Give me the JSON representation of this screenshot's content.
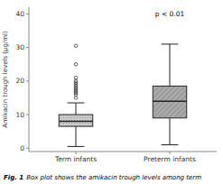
{
  "chart_data": {
    "type": "box",
    "categories": [
      "Term infants",
      "Preterm infants"
    ],
    "boxes": [
      {
        "whisker_low": 0.5,
        "q1": 6.5,
        "median": 8.0,
        "q3": 10.0,
        "whisker_high": 13.5,
        "outliers": [
          15.0,
          16.0,
          16.5,
          17.0,
          17.5,
          18.0,
          18.5,
          19.0,
          19.5,
          20.0,
          21.0,
          25.0,
          30.5
        ]
      },
      {
        "whisker_low": 1.0,
        "q1": 9.0,
        "median": 14.0,
        "q3": 18.5,
        "whisker_high": 31.0,
        "outliers": []
      }
    ],
    "colors": [
      "#cccccc",
      "#aaaaaa"
    ],
    "y_label": "Amikacin trough levels (μg/ml)",
    "annotation": "p < 0.01",
    "caption": [
      "Fig. 1",
      "Box plot shows the amikacin trough levels among term"
    ],
    "ylim": [
      -1,
      42
    ],
    "yticks": [
      0,
      10,
      20,
      30,
      40
    ],
    "grid": false
  }
}
